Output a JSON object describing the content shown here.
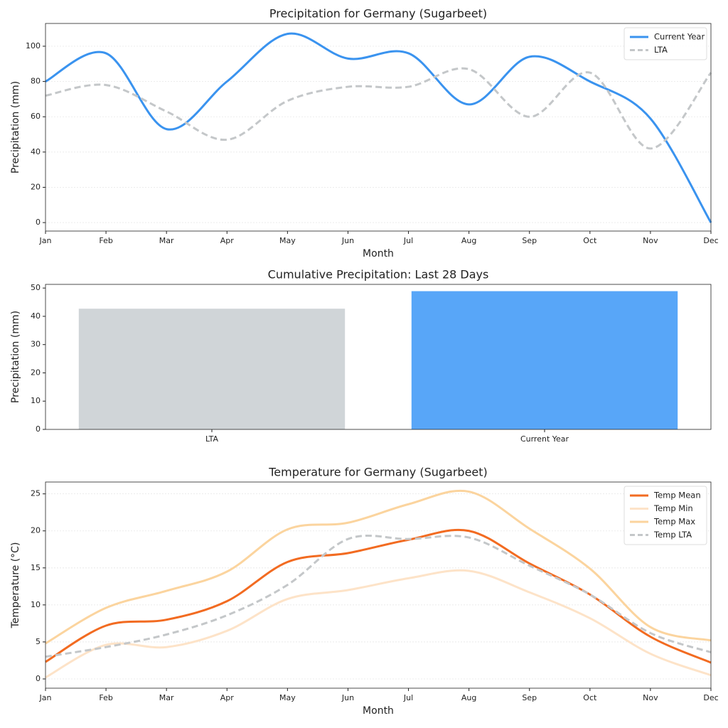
{
  "chart_data": [
    {
      "type": "line",
      "title": "Precipitation for Germany (Sugarbeet)",
      "x_label": "Month",
      "y_label": "Precipitation (mm)",
      "categories": [
        "Jan",
        "Feb",
        "Mar",
        "Apr",
        "May",
        "Jun",
        "Jul",
        "Aug",
        "Sep",
        "Oct",
        "Nov",
        "Dec"
      ],
      "series": [
        {
          "name": "Current Year",
          "color": "#3a93ef",
          "style": "solid",
          "values": [
            80,
            96,
            53,
            80,
            107,
            93,
            96,
            67,
            94,
            80,
            59,
            0
          ]
        },
        {
          "name": "LTA",
          "color": "#c4c7c9",
          "style": "dashed",
          "values": [
            72,
            78,
            63,
            47,
            69,
            77,
            77,
            87,
            60,
            85,
            42,
            85
          ]
        }
      ],
      "ylim": [
        -4.8,
        112.9
      ],
      "yticks": [
        0,
        20,
        40,
        60,
        80,
        100
      ],
      "grid": true,
      "legend": "upper right"
    },
    {
      "type": "bar",
      "title": "Cumulative Precipitation: Last 28 Days",
      "y_label": "Precipitation (mm)",
      "categories": [
        "LTA",
        "Current Year"
      ],
      "values": [
        42.7,
        48.9
      ],
      "colors": [
        "#d0d5d8",
        "#58a6f8"
      ],
      "ylim": [
        0,
        51.3
      ],
      "yticks": [
        0,
        10,
        20,
        30,
        40,
        50
      ],
      "grid": false
    },
    {
      "type": "line",
      "title": "Temperature for Germany (Sugarbeet)",
      "x_label": "Month",
      "y_label": "Temperature (°C)",
      "categories": [
        "Jan",
        "Feb",
        "Mar",
        "Apr",
        "May",
        "Jun",
        "Jul",
        "Aug",
        "Sep",
        "Oct",
        "Nov",
        "Dec"
      ],
      "series": [
        {
          "name": "Temp Mean",
          "color": "#f26b21",
          "style": "solid",
          "values": [
            2.3,
            7.2,
            8.0,
            10.5,
            15.8,
            17.0,
            18.8,
            20.0,
            15.6,
            11.4,
            5.7,
            2.2
          ]
        },
        {
          "name": "Temp Min",
          "color": "#fde3c8",
          "style": "solid",
          "values": [
            0.2,
            4.6,
            4.3,
            6.5,
            10.8,
            12.0,
            13.6,
            14.6,
            11.7,
            8.2,
            3.4,
            0.5
          ]
        },
        {
          "name": "Temp Max",
          "color": "#fbd49e",
          "style": "solid",
          "values": [
            4.8,
            9.6,
            11.9,
            14.5,
            20.2,
            21.1,
            23.6,
            25.3,
            20.3,
            14.9,
            7.0,
            5.2
          ]
        },
        {
          "name": "Temp LTA",
          "color": "#c4c7c9",
          "style": "dashed",
          "values": [
            3.0,
            4.3,
            6.0,
            8.6,
            12.7,
            18.9,
            18.9,
            19.1,
            15.3,
            11.4,
            6.2,
            3.6
          ]
        }
      ],
      "ylim": [
        -1.25,
        26.6
      ],
      "yticks": [
        0,
        5,
        10,
        15,
        20,
        25
      ],
      "grid": true,
      "legend": "upper right"
    }
  ]
}
